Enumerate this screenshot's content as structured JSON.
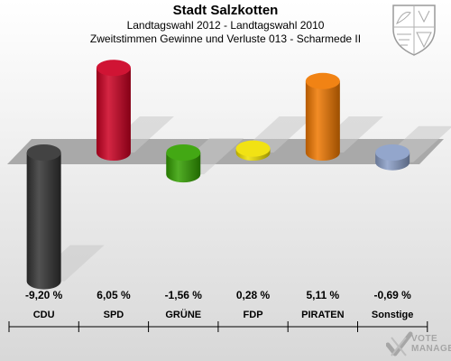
{
  "header": {
    "title": "Stadt Salzkotten",
    "subtitle": "Landtagswahl 2012 - Landtagswahl 2010",
    "description": "Zweitstimmen Gewinne und Verluste 013 - Scharmede II"
  },
  "watermark": {
    "line1": "VOTE",
    "line2": "MANAGER"
  },
  "chart_data": {
    "type": "bar",
    "title": "Stadt Salzkotten",
    "subtitle": "Landtagswahl 2012 - Landtagswahl 2010",
    "categories": [
      "CDU",
      "SPD",
      "GRÜNE",
      "FDP",
      "PIRATEN",
      "Sonstige"
    ],
    "values": [
      -9.2,
      6.05,
      -1.56,
      0.28,
      5.11,
      -0.69
    ],
    "value_labels": [
      "-9,20 %",
      "6,05 %",
      "-1,56 %",
      "0,28 %",
      "5,11 %",
      "-0,69 %"
    ],
    "colors": [
      "#333333",
      "#cc0022",
      "#33a000",
      "#f0e000",
      "#f07800",
      "#8a9ec8"
    ],
    "unit": "%",
    "ylim": [
      -9.5,
      6.5
    ],
    "grid": false,
    "legend": "none"
  }
}
